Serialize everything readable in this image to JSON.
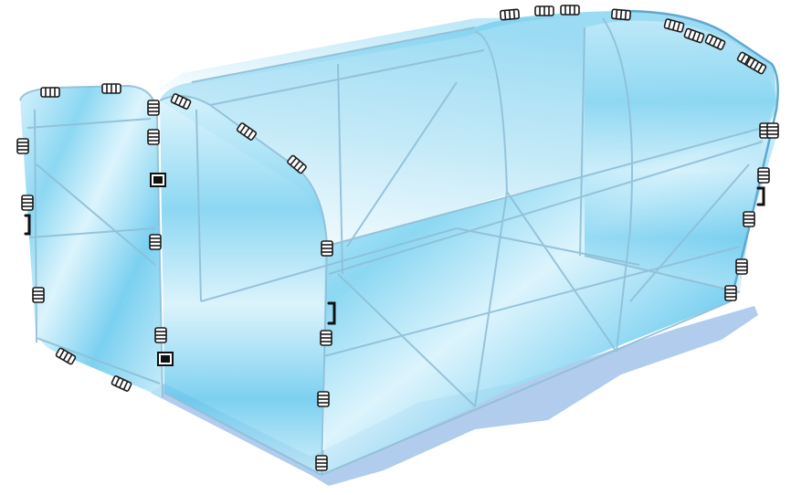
{
  "illustration": {
    "subject": "greenhouse-frame-with-clear-panels",
    "colors": {
      "panel_light": "#cfeffb",
      "panel_mid": "#8fd8f2",
      "panel_deep": "#5fc5ec",
      "frame": "#7fb7d4",
      "shadow": "#a9c7ea",
      "clip_dark": "#1a1a1a",
      "clip_light": "#ffffff"
    },
    "icons": [
      "frame-clip-icon",
      "door-handle-icon",
      "hinge-icon"
    ]
  }
}
